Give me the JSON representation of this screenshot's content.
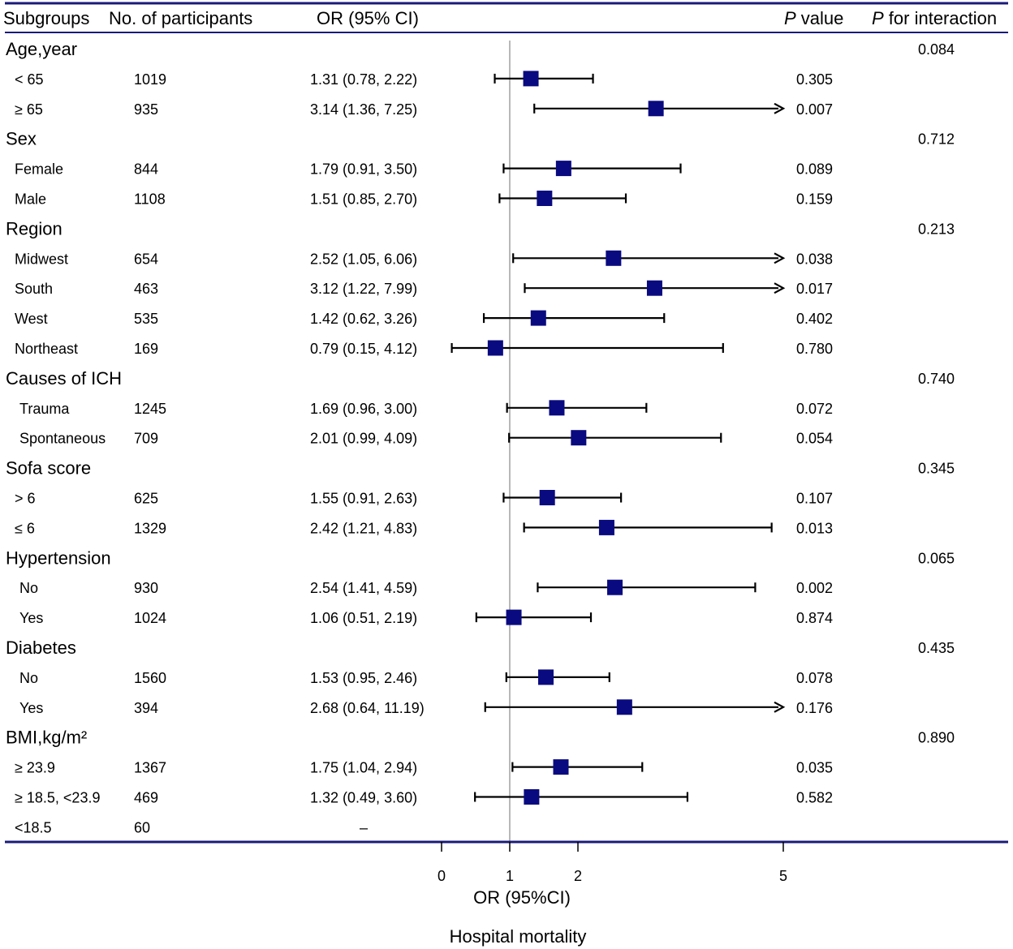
{
  "header": {
    "subgroups": "Subgroups",
    "participants": "No. of participants",
    "or_ci": "OR (95% CI)",
    "p_value_italic": "P",
    "p_value_rest": " value",
    "p_interaction_italic": "P",
    "p_interaction_rest": " for interaction"
  },
  "colors": {
    "marker": "#0a0a80",
    "rule": "#1a1a7a",
    "refline": "#a0a0a0"
  },
  "chart_data": {
    "type": "forest",
    "xlabel": "OR (95%CI)",
    "title_below": "Hospital mortality",
    "x_ticks": [
      0,
      1,
      2,
      5
    ],
    "x_range": [
      0,
      5
    ],
    "reference": 1,
    "groups": [
      {
        "label": "Age,year",
        "p_interaction": "0.084",
        "rows": [
          {
            "label": "< 65",
            "n": "1019",
            "or_text": "1.31 (0.78, 2.22)",
            "or": 1.31,
            "lo": 0.78,
            "hi": 2.22,
            "p": "0.305",
            "arrow": false
          },
          {
            "label": "≥ 65",
            "n": "935",
            "or_text": "3.14 (1.36, 7.25)",
            "or": 3.14,
            "lo": 1.36,
            "hi": 7.25,
            "p": "0.007",
            "arrow": true
          }
        ]
      },
      {
        "label": "Sex",
        "p_interaction": "0.712",
        "rows": [
          {
            "label": "Female",
            "n": "844",
            "or_text": "1.79 (0.91, 3.50)",
            "or": 1.79,
            "lo": 0.91,
            "hi": 3.5,
            "p": "0.089",
            "arrow": false
          },
          {
            "label": "Male",
            "n": "1108",
            "or_text": "1.51 (0.85, 2.70)",
            "or": 1.51,
            "lo": 0.85,
            "hi": 2.7,
            "p": "0.159",
            "arrow": false
          }
        ]
      },
      {
        "label": "Region",
        "p_interaction": "0.213",
        "rows": [
          {
            "label": "Midwest",
            "n": "654",
            "or_text": "2.52 (1.05, 6.06)",
            "or": 2.52,
            "lo": 1.05,
            "hi": 6.06,
            "p": "0.038",
            "arrow": true
          },
          {
            "label": "South",
            "n": "463",
            "or_text": "3.12 (1.22, 7.99)",
            "or": 3.12,
            "lo": 1.22,
            "hi": 7.99,
            "p": "0.017",
            "arrow": true
          },
          {
            "label": "West",
            "n": "535",
            "or_text": "1.42 (0.62, 3.26)",
            "or": 1.42,
            "lo": 0.62,
            "hi": 3.26,
            "p": "0.402",
            "arrow": false
          },
          {
            "label": "Northeast",
            "n": "169",
            "or_text": "0.79 (0.15, 4.12)",
            "or": 0.79,
            "lo": 0.15,
            "hi": 4.12,
            "p": "0.780",
            "arrow": false
          }
        ]
      },
      {
        "label": "Causes of ICH",
        "p_interaction": "0.740",
        "rows": [
          {
            "label": "Trauma",
            "n": "1245",
            "or_text": "1.69 (0.96, 3.00)",
            "or": 1.69,
            "lo": 0.96,
            "hi": 3.0,
            "p": "0.072",
            "arrow": false
          },
          {
            "label": "Spontaneous",
            "n": "709",
            "or_text": "2.01 (0.99, 4.09)",
            "or": 2.01,
            "lo": 0.99,
            "hi": 4.09,
            "p": "0.054",
            "arrow": false
          }
        ]
      },
      {
        "label": "Sofa score",
        "p_interaction": "0.345",
        "rows": [
          {
            "label": "> 6",
            "n": "625",
            "or_text": "1.55 (0.91, 2.63)",
            "or": 1.55,
            "lo": 0.91,
            "hi": 2.63,
            "p": "0.107",
            "arrow": false
          },
          {
            "label": "≤ 6",
            "n": "1329",
            "or_text": "2.42 (1.21, 4.83)",
            "or": 2.42,
            "lo": 1.21,
            "hi": 4.83,
            "p": "0.013",
            "arrow": false
          }
        ]
      },
      {
        "label": "Hypertension",
        "p_interaction": "0.065",
        "rows": [
          {
            "label": "No",
            "n": "930",
            "or_text": "2.54 (1.41, 4.59)",
            "or": 2.54,
            "lo": 1.41,
            "hi": 4.59,
            "p": "0.002",
            "arrow": false
          },
          {
            "label": "Yes",
            "n": "1024",
            "or_text": "1.06 (0.51, 2.19)",
            "or": 1.06,
            "lo": 0.51,
            "hi": 2.19,
            "p": "0.874",
            "arrow": false
          }
        ]
      },
      {
        "label": "Diabetes",
        "p_interaction": "0.435",
        "rows": [
          {
            "label": "No",
            "n": "1560",
            "or_text": "1.53 (0.95, 2.46)",
            "or": 1.53,
            "lo": 0.95,
            "hi": 2.46,
            "p": "0.078",
            "arrow": false
          },
          {
            "label": "Yes",
            "n": "394",
            "or_text": "2.68 (0.64, 11.19)",
            "or": 2.68,
            "lo": 0.64,
            "hi": 11.19,
            "p": "0.176",
            "arrow": true
          }
        ]
      },
      {
        "label": "BMI,kg/m²",
        "p_interaction": "0.890",
        "rows": [
          {
            "label": "≥ 23.9",
            "n": "1367",
            "or_text": "1.75 (1.04, 2.94)",
            "or": 1.75,
            "lo": 1.04,
            "hi": 2.94,
            "p": "0.035",
            "arrow": false
          },
          {
            "label": "≥ 18.5, <23.9",
            "n": "469",
            "or_text": "1.32 (0.49, 3.60)",
            "or": 1.32,
            "lo": 0.49,
            "hi": 3.6,
            "p": "0.582",
            "arrow": false
          },
          {
            "label": "<18.5",
            "n": "60",
            "or_text": "–",
            "or": null,
            "lo": null,
            "hi": null,
            "p": "",
            "arrow": false
          }
        ]
      }
    ]
  }
}
